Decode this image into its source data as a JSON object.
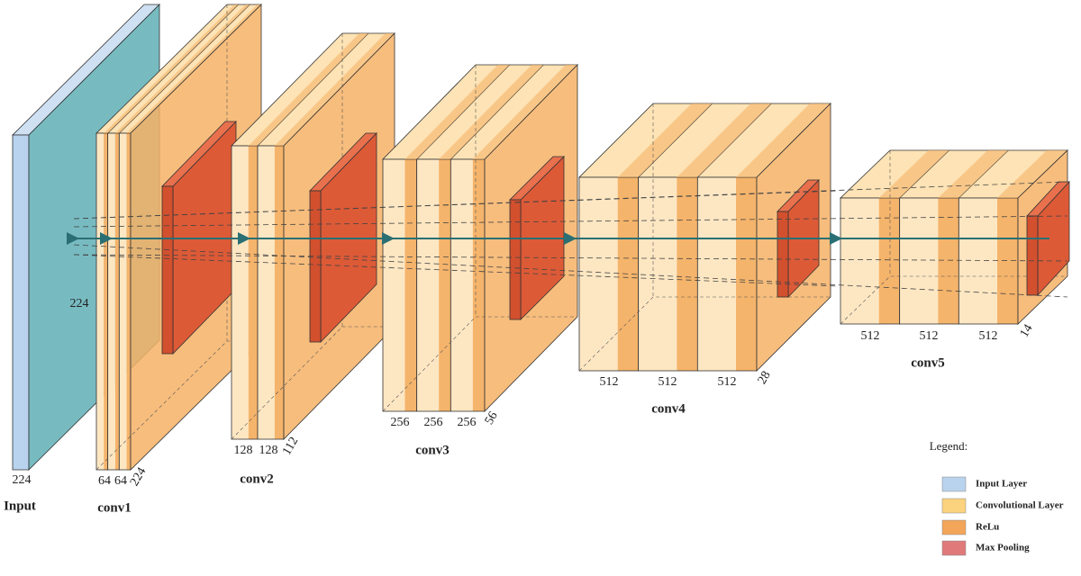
{
  "layers": [
    {
      "label": "Input",
      "dims": [
        224,
        224
      ]
    },
    {
      "label": "conv1",
      "dims": [
        64,
        64,
        224
      ]
    },
    {
      "label": "conv2",
      "dims": [
        128,
        128,
        112
      ]
    },
    {
      "label": "conv3",
      "dims": [
        256,
        256,
        256,
        56
      ]
    },
    {
      "label": "conv4",
      "dims": [
        512,
        512,
        512,
        28
      ]
    },
    {
      "label": "conv5",
      "dims": [
        512,
        512,
        512,
        14
      ]
    }
  ],
  "legend": {
    "title": "Legend:",
    "items": [
      "Input Layer",
      "Convolutional Layer",
      "ReLu",
      "Max Pooling"
    ]
  }
}
